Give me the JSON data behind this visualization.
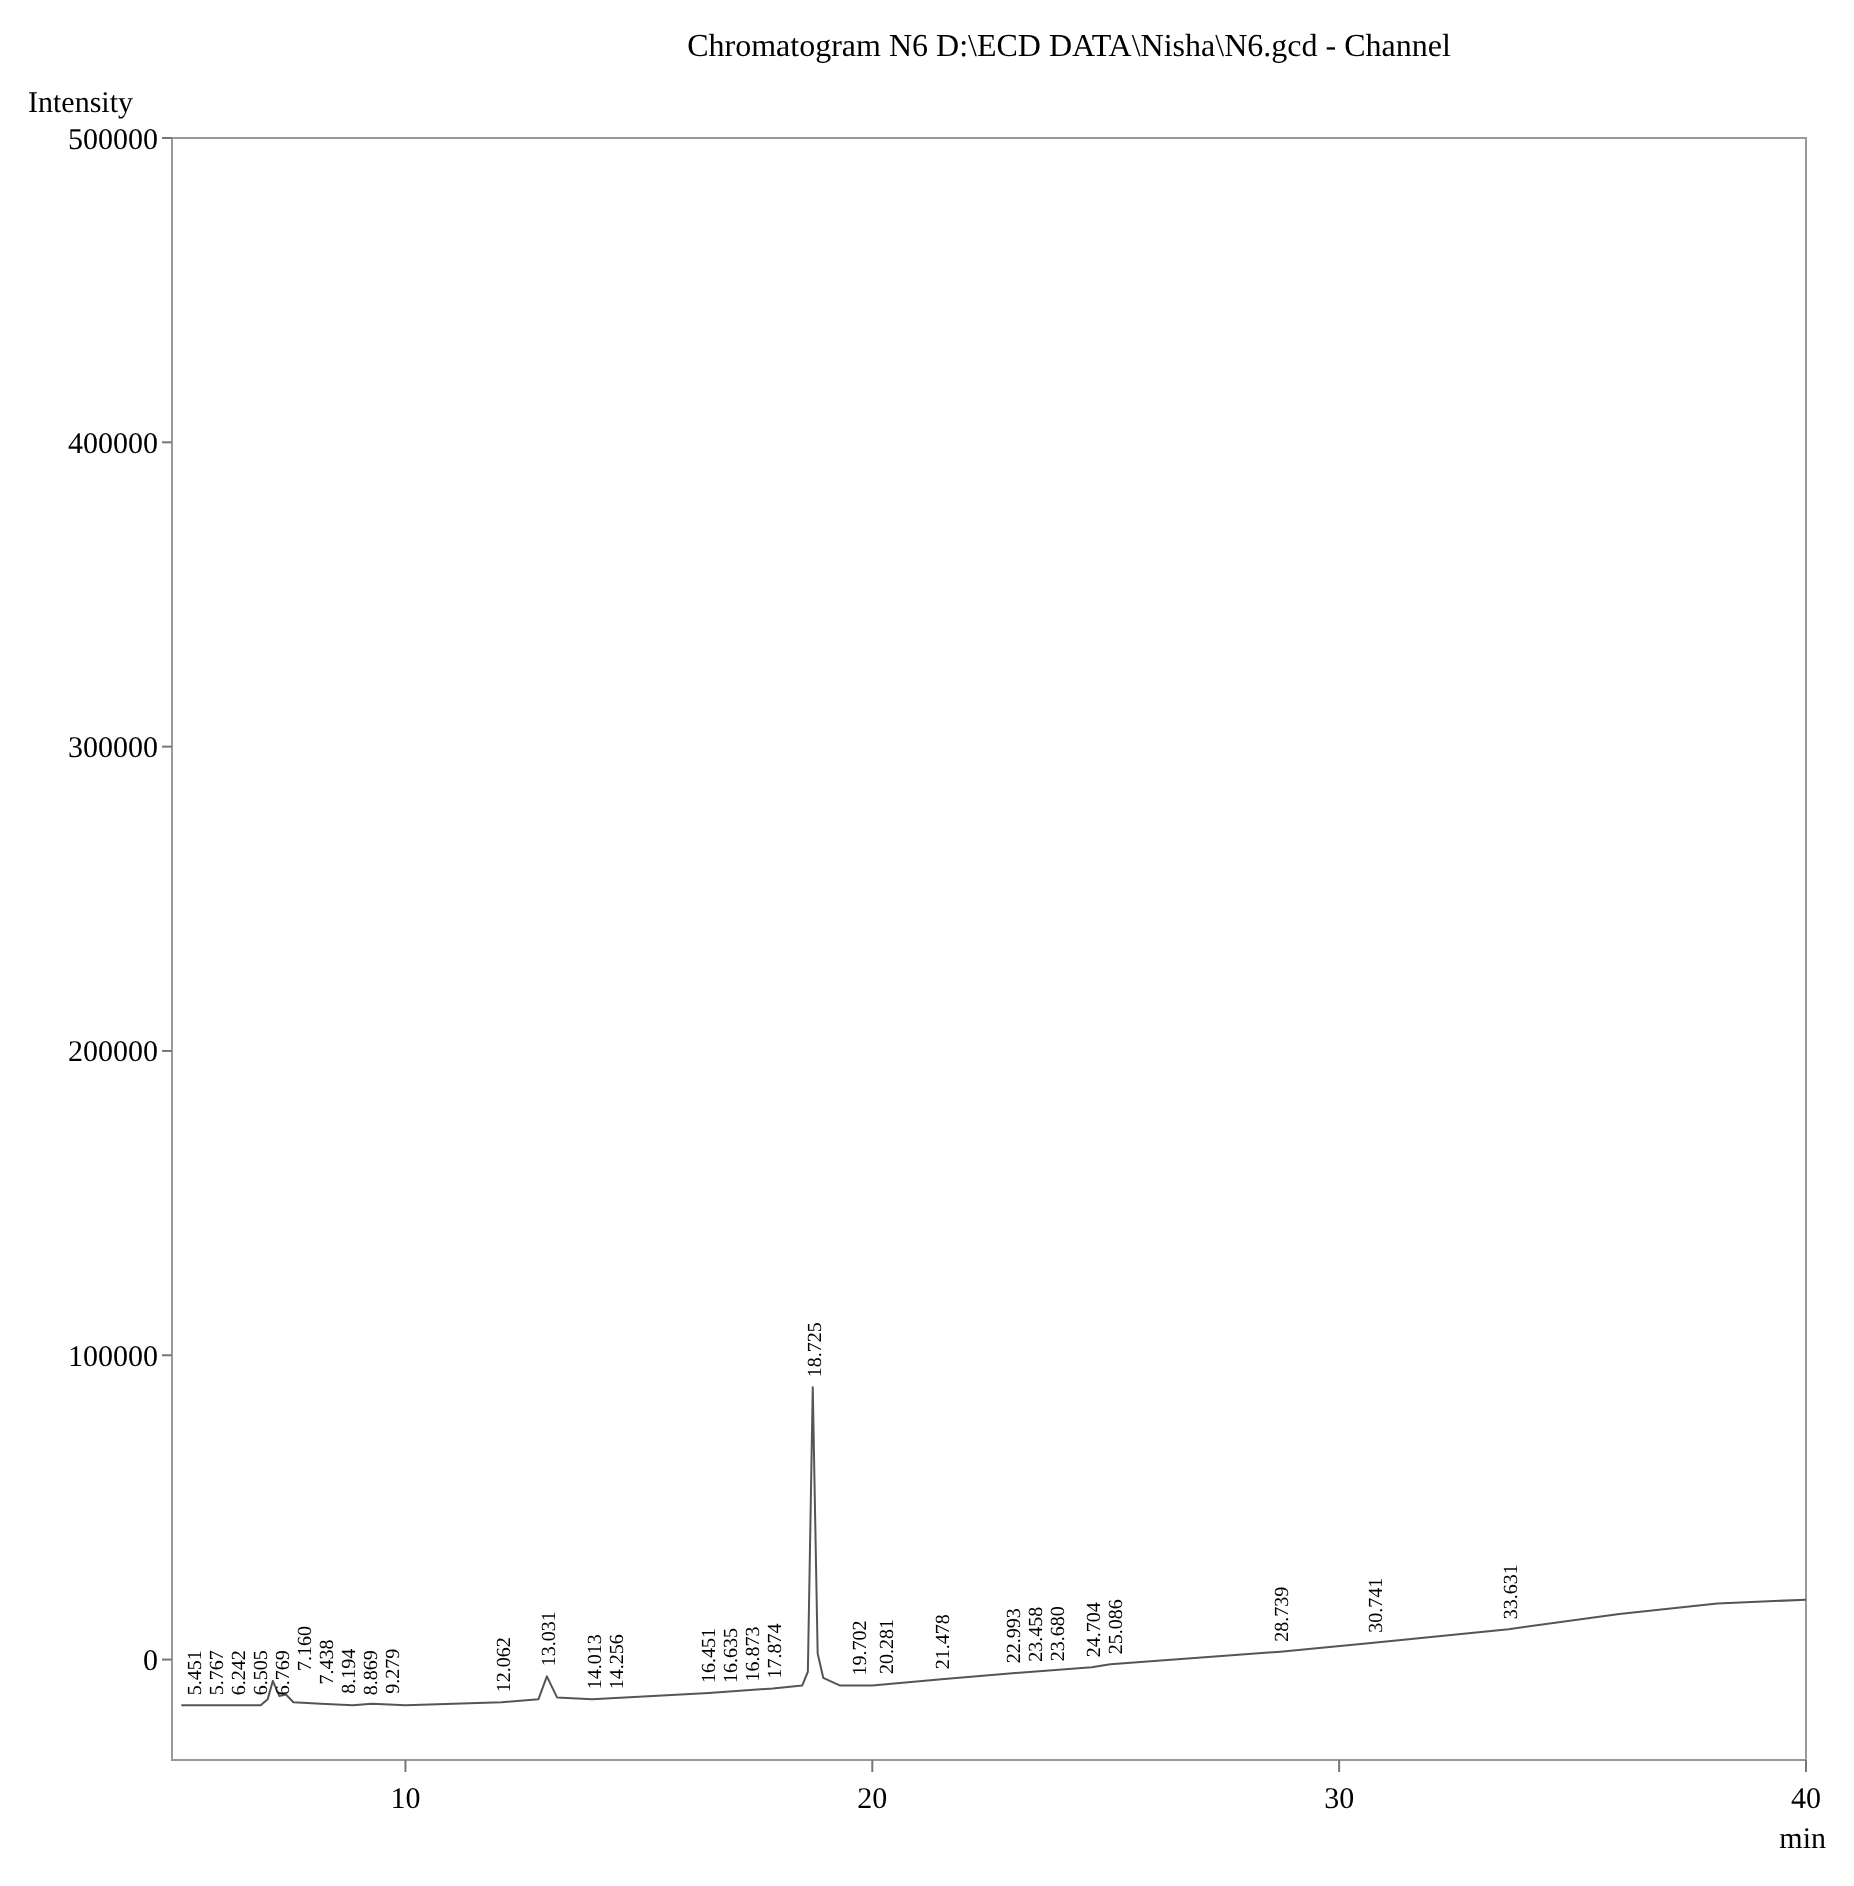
{
  "chart_data": {
    "type": "line",
    "title": "Chromatogram N6 D:\\ECD DATA\\Nisha\\N6.gcd - Channel",
    "xlabel": "min",
    "ylabel": "Intensity",
    "xlim": [
      5,
      40
    ],
    "xticks": [
      10,
      20,
      30,
      40
    ],
    "ylim": [
      -33000,
      500000
    ],
    "yticks": [
      0,
      100000,
      200000,
      300000,
      400000,
      500000
    ],
    "grid": false,
    "line_style": "solid",
    "marker": "none",
    "series": [
      {
        "color": "#555555",
        "x": [
          5.2,
          6.9,
          7.05,
          7.16,
          7.3,
          7.44,
          7.6,
          8.19,
          8.87,
          9.28,
          10,
          12.06,
          12.85,
          13.03,
          13.25,
          14,
          16.5,
          17.87,
          18.5,
          18.62,
          18.725,
          18.83,
          18.95,
          19.3,
          20,
          21.48,
          23,
          24.7,
          25.1,
          28.74,
          30.74,
          33.63,
          36,
          38.1,
          40
        ],
        "values": [
          -15000,
          -15000,
          -13000,
          -7000,
          -12000,
          -11500,
          -14000,
          -14500,
          -15000,
          -14500,
          -15000,
          -14000,
          -13000,
          -5500,
          -12500,
          -13000,
          -11000,
          -9500,
          -8500,
          -4000,
          89500,
          2000,
          -6000,
          -8500,
          -8500,
          -6500,
          -4500,
          -2500,
          -1500,
          2600,
          5500,
          10000,
          15000,
          18400,
          19700
        ]
      }
    ],
    "annotations": [
      {
        "text": "5.451",
        "x": 5.451,
        "y": -15000
      },
      {
        "text": "5.767",
        "x": 5.767,
        "y": -15000
      },
      {
        "text": "6.242",
        "x": 6.242,
        "y": -15000
      },
      {
        "text": "6.505",
        "x": 6.505,
        "y": -15000
      },
      {
        "text": "6.769",
        "x": 6.769,
        "y": -15000
      },
      {
        "text": "7.160",
        "x": 7.16,
        "y": -7000
      },
      {
        "text": "7.438",
        "x": 7.438,
        "y": -11500
      },
      {
        "text": "8.194",
        "x": 8.194,
        "y": -14500
      },
      {
        "text": "8.869",
        "x": 8.869,
        "y": -15000
      },
      {
        "text": "9.279",
        "x": 9.279,
        "y": -14500
      },
      {
        "text": "12.062",
        "x": 12.062,
        "y": -14000
      },
      {
        "text": "13.031",
        "x": 13.031,
        "y": -5500
      },
      {
        "text": "14.013",
        "x": 14.013,
        "y": -13000
      },
      {
        "text": "14.256",
        "x": 14.256,
        "y": -13000
      },
      {
        "text": "16.451",
        "x": 16.451,
        "y": -11000
      },
      {
        "text": "16.635",
        "x": 16.635,
        "y": -11000
      },
      {
        "text": "16.873",
        "x": 16.873,
        "y": -10500
      },
      {
        "text": "17.874",
        "x": 17.874,
        "y": -9500
      },
      {
        "text": "18.725",
        "x": 18.725,
        "y": 89500
      },
      {
        "text": "19.702",
        "x": 19.702,
        "y": -8500
      },
      {
        "text": "20.281",
        "x": 20.281,
        "y": -8000
      },
      {
        "text": "21.478",
        "x": 21.478,
        "y": -6500
      },
      {
        "text": "22.993",
        "x": 22.993,
        "y": -4500
      },
      {
        "text": "23.458",
        "x": 23.458,
        "y": -4000
      },
      {
        "text": "23.680",
        "x": 23.68,
        "y": -3800
      },
      {
        "text": "24.704",
        "x": 24.704,
        "y": -2500
      },
      {
        "text": "25.086",
        "x": 25.086,
        "y": -1500
      },
      {
        "text": "28.739",
        "x": 28.739,
        "y": 2600
      },
      {
        "text": "30.741",
        "x": 30.741,
        "y": 5500
      },
      {
        "text": "33.631",
        "x": 33.631,
        "y": 10000
      }
    ]
  }
}
